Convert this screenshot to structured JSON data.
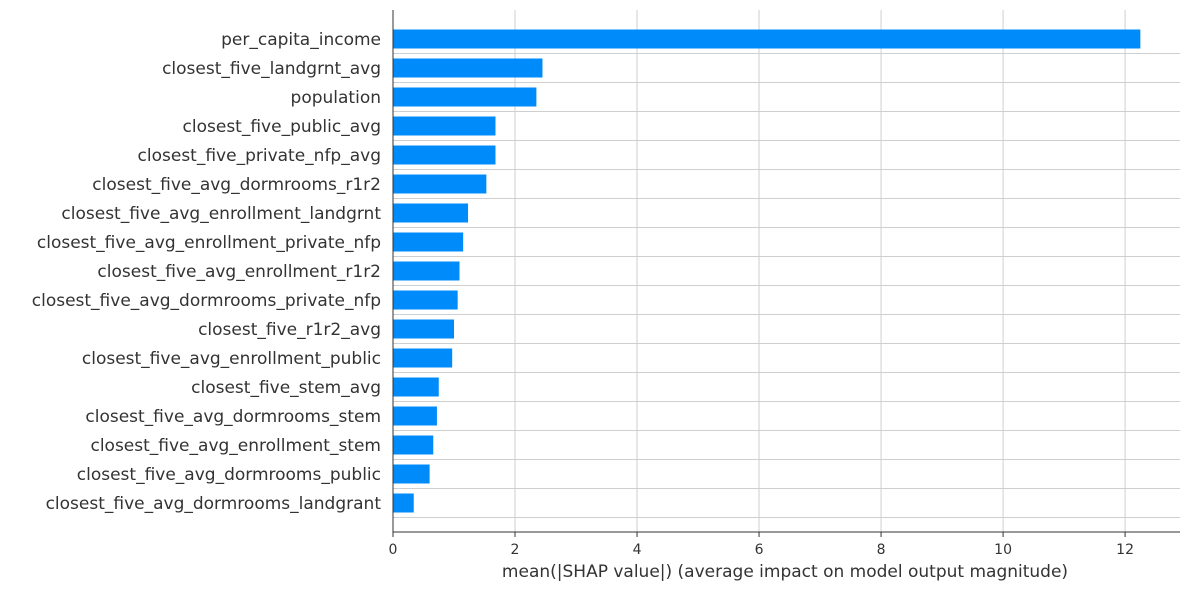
{
  "chart_data": {
    "type": "bar",
    "orientation": "horizontal",
    "categories": [
      "per_capita_income",
      "closest_five_landgrnt_avg",
      "population",
      "closest_five_public_avg",
      "closest_five_private_nfp_avg",
      "closest_five_avg_dormrooms_r1r2",
      "closest_five_avg_enrollment_landgrnt",
      "closest_five_avg_enrollment_private_nfp",
      "closest_five_avg_enrollment_r1r2",
      "closest_five_avg_dormrooms_private_nfp",
      "closest_five_r1r2_avg",
      "closest_five_avg_enrollment_public",
      "closest_five_stem_avg",
      "closest_five_avg_dormrooms_stem",
      "closest_five_avg_enrollment_stem",
      "closest_five_avg_dormrooms_public",
      "closest_five_avg_dormrooms_landgrant"
    ],
    "values": [
      12.25,
      2.45,
      2.35,
      1.68,
      1.68,
      1.53,
      1.23,
      1.15,
      1.09,
      1.06,
      1.0,
      0.97,
      0.75,
      0.72,
      0.66,
      0.6,
      0.34
    ],
    "xlabel": "mean(|SHAP value|) (average impact on model output magnitude)",
    "ylabel": "",
    "xlim": [
      0,
      12.9
    ],
    "xticks": [
      0,
      2,
      4,
      6,
      8,
      10,
      12
    ],
    "grid": true,
    "bar_color": "#008bfb",
    "grid_color": "#cfcfcf",
    "text_color": "#333333"
  }
}
